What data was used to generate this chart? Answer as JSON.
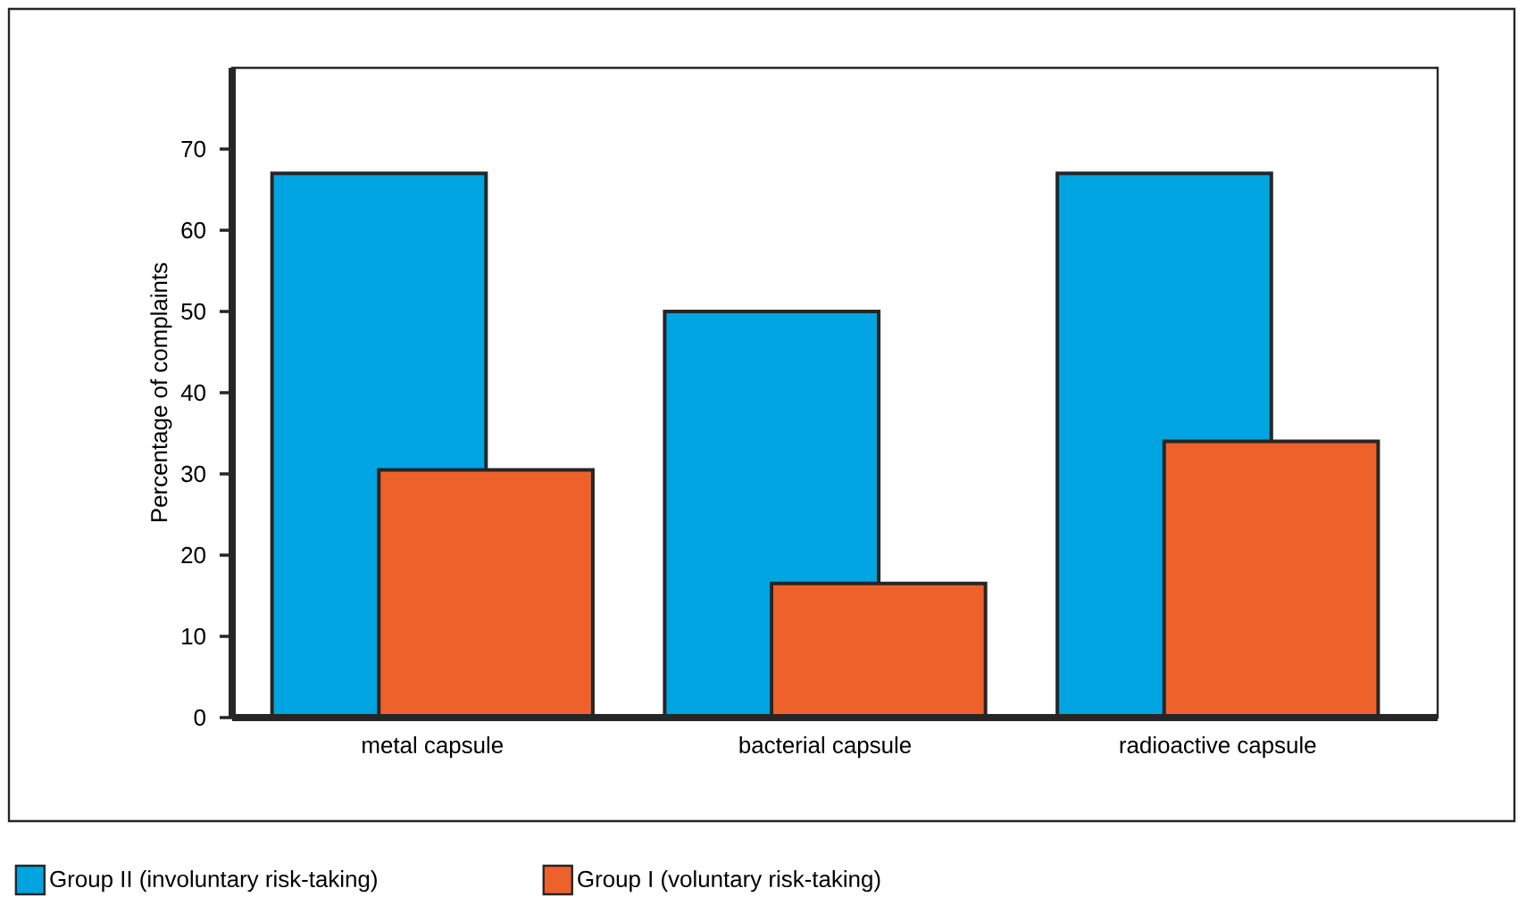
{
  "chart_data": {
    "type": "bar",
    "ylabel": "Percentage of complaints",
    "categories": [
      "metal capsule",
      "bacterial capsule",
      "radioactive capsule"
    ],
    "series": [
      {
        "name": "Group II (involuntary risk-taking)",
        "color": "#00a4e1",
        "values": [
          67,
          50,
          67
        ]
      },
      {
        "name": "Group I (voluntary risk-taking)",
        "color": "#ef612b",
        "values": [
          30.5,
          16.5,
          34
        ]
      }
    ],
    "ylim": [
      0,
      80
    ],
    "yticks": [
      0,
      10,
      20,
      30,
      40,
      50,
      60,
      70
    ],
    "legend": "bottom"
  }
}
